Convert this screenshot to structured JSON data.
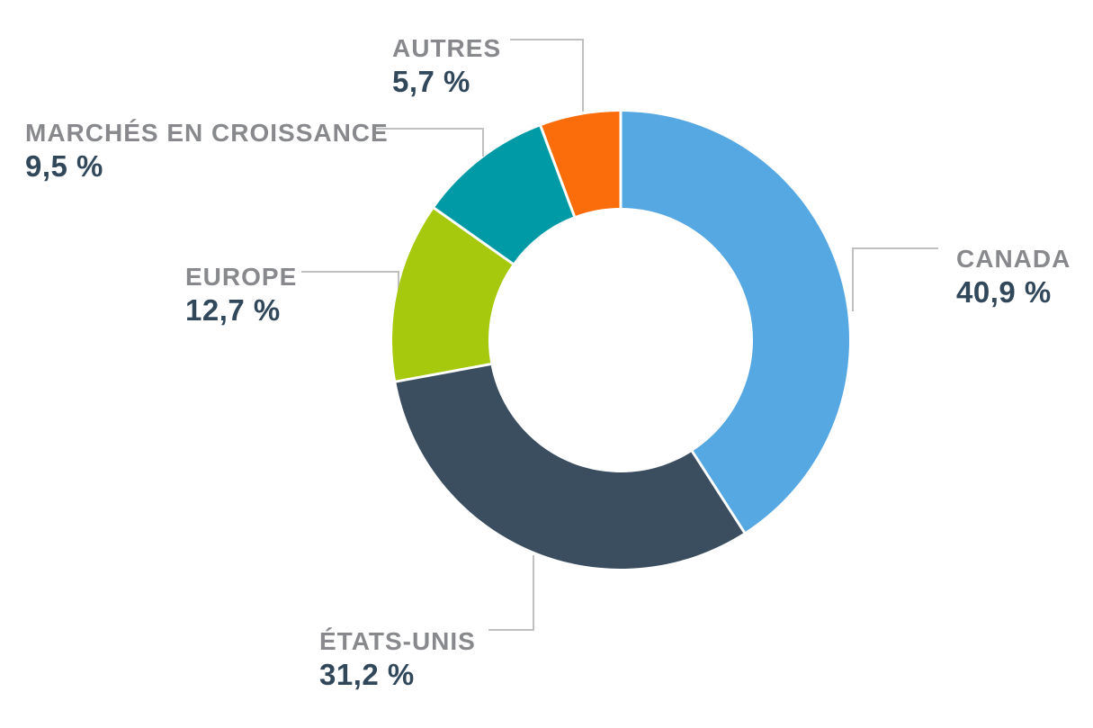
{
  "chart_data": {
    "type": "pie",
    "subtype": "donut",
    "title": "",
    "categories": [
      "CANADA",
      "ÉTATS-UNIS",
      "EUROPE",
      "MARCHÉS EN CROISSANCE",
      "AUTRES"
    ],
    "values": [
      40.9,
      31.2,
      12.7,
      9.5,
      5.7
    ],
    "display_values": [
      "40,9 %",
      "31,2 %",
      "12,7 %",
      "9,5 %",
      "5,7 %"
    ],
    "colors": [
      "#55A8E2",
      "#3A4E5F",
      "#A6C90D",
      "#009AA6",
      "#FB6C0A"
    ],
    "start_angle_deg": 0,
    "direction": "clockwise",
    "inner_radius_ratio": 0.58,
    "separator_color": "#FFFFFF",
    "leader_line_color": "#BFC0C2",
    "label_color": "#88898C",
    "value_color": "#31485B",
    "background": "#FFFFFF",
    "legend_position": "callouts"
  }
}
